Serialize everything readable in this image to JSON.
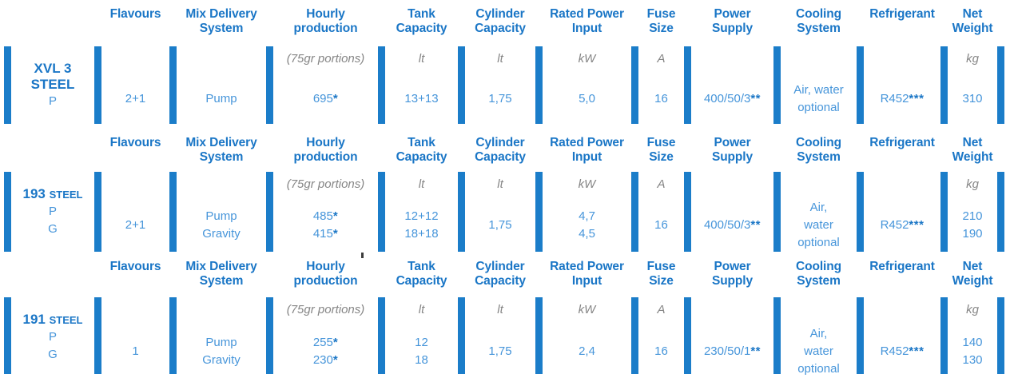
{
  "colors": {
    "bar_blue": "#1b7dc9",
    "header_blue": "#1a76c6",
    "value_blue": "#4695da",
    "unit_gray": "#868686"
  },
  "headers": {
    "flavours": "Flavours",
    "mix_delivery": "Mix Delivery\nSystem",
    "hourly_production": "Hourly\nproduction",
    "tank_capacity": "Tank\nCapacity",
    "cylinder_capacity": "Cylinder\nCapacity",
    "rated_power_input": "Rated Power\nInput",
    "fuse_size": "Fuse\nSize",
    "power_supply": "Power\nSupply",
    "cooling_system": "Cooling\nSystem",
    "refrigerant": "Refrigerant",
    "net_weight": "Net\nWeight"
  },
  "units": {
    "hourly_production": "(75gr portions)",
    "tank_capacity": "lt",
    "cylinder_capacity": "lt",
    "rated_power_input": "kW",
    "fuse_size": "A",
    "net_weight": "kg"
  },
  "sections": [
    {
      "model": {
        "name": "XVL 3",
        "sub": "STEEL",
        "variants": [
          "P"
        ]
      },
      "flavours": "2+1",
      "mix_delivery": [
        "Pump"
      ],
      "hourly_production": [
        {
          "value": "695",
          "stars": "*"
        }
      ],
      "tank_capacity": [
        "13+13"
      ],
      "cylinder_capacity": [
        "1,75"
      ],
      "rated_power_input": [
        "5,0"
      ],
      "fuse_size": [
        "16"
      ],
      "power_supply": [
        {
          "value": "400/50/3",
          "stars": "**"
        }
      ],
      "cooling_system": [
        "Air, water",
        "optional"
      ],
      "refrigerant": [
        {
          "value": "R452",
          "stars": "***"
        }
      ],
      "net_weight": [
        "310"
      ]
    },
    {
      "model": {
        "name": "193",
        "sub": "STEEL",
        "variants": [
          "P",
          "G"
        ]
      },
      "flavours": "2+1",
      "mix_delivery": [
        "Pump",
        "Gravity"
      ],
      "hourly_production": [
        {
          "value": "485",
          "stars": "*"
        },
        {
          "value": "415",
          "stars": "*"
        }
      ],
      "tank_capacity": [
        "12+12",
        "18+18"
      ],
      "cylinder_capacity": [
        "1,75"
      ],
      "rated_power_input": [
        "4,7",
        "4,5"
      ],
      "fuse_size": [
        "16"
      ],
      "power_supply": [
        {
          "value": "400/50/3",
          "stars": "**"
        }
      ],
      "cooling_system": [
        "Air,",
        "water",
        "optional"
      ],
      "refrigerant": [
        {
          "value": "R452",
          "stars": "***"
        }
      ],
      "net_weight": [
        "210",
        "190"
      ]
    },
    {
      "model": {
        "name": "191",
        "sub": "STEEL",
        "variants": [
          "P",
          "G"
        ]
      },
      "flavours": "1",
      "mix_delivery": [
        "Pump",
        "Gravity"
      ],
      "hourly_production": [
        {
          "value": "255",
          "stars": "*"
        },
        {
          "value": "230",
          "stars": "*"
        }
      ],
      "tank_capacity": [
        "12",
        "18"
      ],
      "cylinder_capacity": [
        "1,75"
      ],
      "rated_power_input": [
        "2,4"
      ],
      "fuse_size": [
        "16"
      ],
      "power_supply": [
        {
          "value": "230/50/1",
          "stars": "**"
        }
      ],
      "cooling_system": [
        "Air,",
        "water",
        "optional"
      ],
      "refrigerant": [
        {
          "value": "R452",
          "stars": "***"
        }
      ],
      "net_weight": [
        "140",
        "130"
      ]
    }
  ]
}
